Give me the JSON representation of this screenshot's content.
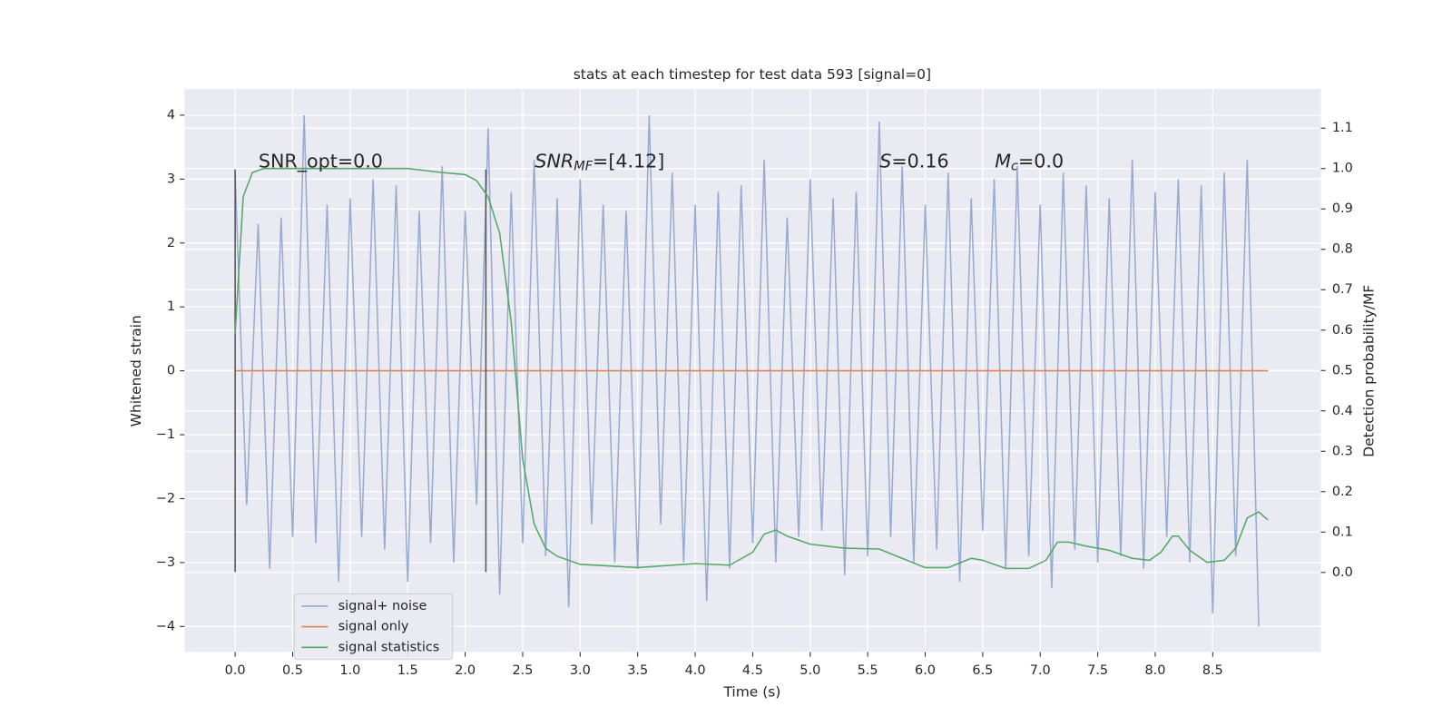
{
  "chart_data": {
    "type": "line",
    "title": "stats at each timestep for test data 593 [signal=0]",
    "xlabel": "Time (s)",
    "ylabel": "Whitened strain",
    "y2label": "Detection probability/MF",
    "xlim": [
      -0.44,
      9.44
    ],
    "ylim": [
      -4.4,
      4.41
    ],
    "y2lim": [
      -0.197,
      1.197
    ],
    "xticks": [
      {
        "value": 0,
        "label": "0.0"
      },
      0.5,
      {
        "value": 1,
        "label": "1.0"
      },
      1.5,
      {
        "value": 2,
        "label": "2.0"
      },
      2.5,
      {
        "value": 3,
        "label": "3.0"
      },
      3.5,
      {
        "value": 4,
        "label": "4.0"
      },
      4.5,
      {
        "value": 5,
        "label": "5.0"
      },
      5.5,
      {
        "value": 6,
        "label": "6.0"
      },
      6.5,
      {
        "value": 7,
        "label": "7.0"
      },
      7.5,
      {
        "value": 8,
        "label": "8.0"
      },
      8.5
    ],
    "yticks": [
      {
        "value": -4,
        "label": "−4"
      },
      {
        "value": -3,
        "label": "−3"
      },
      {
        "value": -2,
        "label": "−2"
      },
      {
        "value": -1,
        "label": "−1"
      },
      0,
      1,
      2,
      3,
      4
    ],
    "y2ticks": [
      {
        "value": 0,
        "label": "0.0"
      },
      0.1,
      0.2,
      0.3,
      0.4,
      0.5,
      0.6,
      0.7,
      0.8,
      0.9,
      {
        "value": 1,
        "label": "1.0"
      },
      1.1
    ],
    "grid": true,
    "legend": "lower left",
    "background": "#eaeaf2",
    "markers": {
      "x": [
        0,
        2.18
      ],
      "ymin": -3.15,
      "ymax": 3.15,
      "color": "#555555"
    },
    "annotations": [
      {
        "text": "SNR_opt=0.0"
      },
      {
        "main": "SNR",
        "sub": "MF",
        "rest": "=[4.12]"
      },
      {
        "main": "S",
        "rest": "=0.16"
      },
      {
        "main": "M",
        "sub": "c",
        "rest": "=0.0"
      }
    ],
    "series": [
      {
        "name": "signal+ noise",
        "color": "#98abd0",
        "x": [
          0,
          0.1,
          0.2,
          0.3,
          0.4,
          0.5,
          0.6,
          0.7,
          0.8,
          0.9,
          1,
          1.1,
          1.2,
          1.3,
          1.4,
          1.5,
          1.6,
          1.7,
          1.8,
          1.9,
          2,
          2.1,
          2.2,
          2.3,
          2.4,
          2.5,
          2.6,
          2.7,
          2.8,
          2.9,
          3,
          3.1,
          3.2,
          3.3,
          3.4,
          3.5,
          3.6,
          3.7,
          3.8,
          3.9,
          4,
          4.1,
          4.2,
          4.3,
          4.4,
          4.5,
          4.6,
          4.7,
          4.8,
          4.9,
          5,
          5.1,
          5.2,
          5.3,
          5.4,
          5.5,
          5.6,
          5.7,
          5.8,
          5.9,
          6,
          6.1,
          6.2,
          6.3,
          6.4,
          6.5,
          6.6,
          6.7,
          6.8,
          6.9,
          7,
          7.1,
          7.2,
          7.3,
          7.4,
          7.5,
          7.6,
          7.7,
          7.8,
          7.9,
          8,
          8.1,
          8.2,
          8.3,
          8.4,
          8.5,
          8.6,
          8.7,
          8.8,
          8.9
        ],
        "values": [
          3.1,
          -2.1,
          2.3,
          -3.1,
          2.4,
          -2.6,
          4.0,
          -2.7,
          2.6,
          -3.3,
          2.7,
          -2.6,
          3.0,
          -2.8,
          2.9,
          -3.3,
          2.5,
          -2.7,
          3.2,
          -3.0,
          2.5,
          -2.1,
          3.8,
          -3.5,
          2.8,
          -2.7,
          3.3,
          -2.9,
          2.7,
          -3.7,
          3.0,
          -2.4,
          2.6,
          -3.0,
          2.5,
          -3.1,
          4.0,
          -2.4,
          3.1,
          -3.0,
          2.6,
          -3.6,
          2.8,
          -3.1,
          2.9,
          -2.7,
          3.3,
          -3.0,
          2.4,
          -2.6,
          3.0,
          -2.5,
          2.7,
          -3.2,
          2.8,
          -2.9,
          3.9,
          -2.6,
          3.2,
          -3.0,
          2.6,
          -2.8,
          3.1,
          -3.3,
          2.7,
          -2.5,
          3.0,
          -3.1,
          3.2,
          -2.9,
          2.6,
          -3.4,
          3.1,
          -2.8,
          2.9,
          -3.0,
          2.7,
          -2.9,
          3.3,
          -3.1,
          2.8,
          -2.6,
          3.0,
          -3.0,
          2.9,
          -3.8,
          3.1,
          -2.9,
          3.3,
          -4.0
        ]
      },
      {
        "name": "signal only",
        "color": "#dd8452",
        "x": [
          0,
          8.98
        ],
        "values": [
          0,
          0
        ]
      },
      {
        "name": "signal statistics",
        "color": "#55a868",
        "axis": "y2",
        "x": [
          0,
          0.07,
          0.15,
          0.25,
          0.5,
          1,
          1.5,
          1.8,
          2,
          2.1,
          2.2,
          2.3,
          2.4,
          2.5,
          2.6,
          2.7,
          2.8,
          3,
          3.5,
          4,
          4.3,
          4.5,
          4.6,
          4.7,
          4.8,
          5,
          5.3,
          5.6,
          5.8,
          6,
          6.2,
          6.4,
          6.5,
          6.7,
          6.9,
          7.05,
          7.15,
          7.25,
          7.4,
          7.6,
          7.8,
          7.95,
          8.05,
          8.15,
          8.2,
          8.3,
          8.45,
          8.6,
          8.7,
          8.8,
          8.9,
          8.98
        ],
        "values": [
          0.59,
          0.93,
          0.99,
          1.0,
          1.0,
          1.0,
          1.0,
          0.99,
          0.985,
          0.97,
          0.93,
          0.84,
          0.62,
          0.28,
          0.12,
          0.06,
          0.04,
          0.02,
          0.012,
          0.022,
          0.018,
          0.05,
          0.095,
          0.105,
          0.09,
          0.07,
          0.06,
          0.058,
          0.035,
          0.012,
          0.012,
          0.035,
          0.03,
          0.01,
          0.01,
          0.03,
          0.075,
          0.075,
          0.065,
          0.055,
          0.035,
          0.03,
          0.05,
          0.09,
          0.09,
          0.055,
          0.025,
          0.03,
          0.06,
          0.135,
          0.15,
          0.13
        ]
      }
    ]
  }
}
